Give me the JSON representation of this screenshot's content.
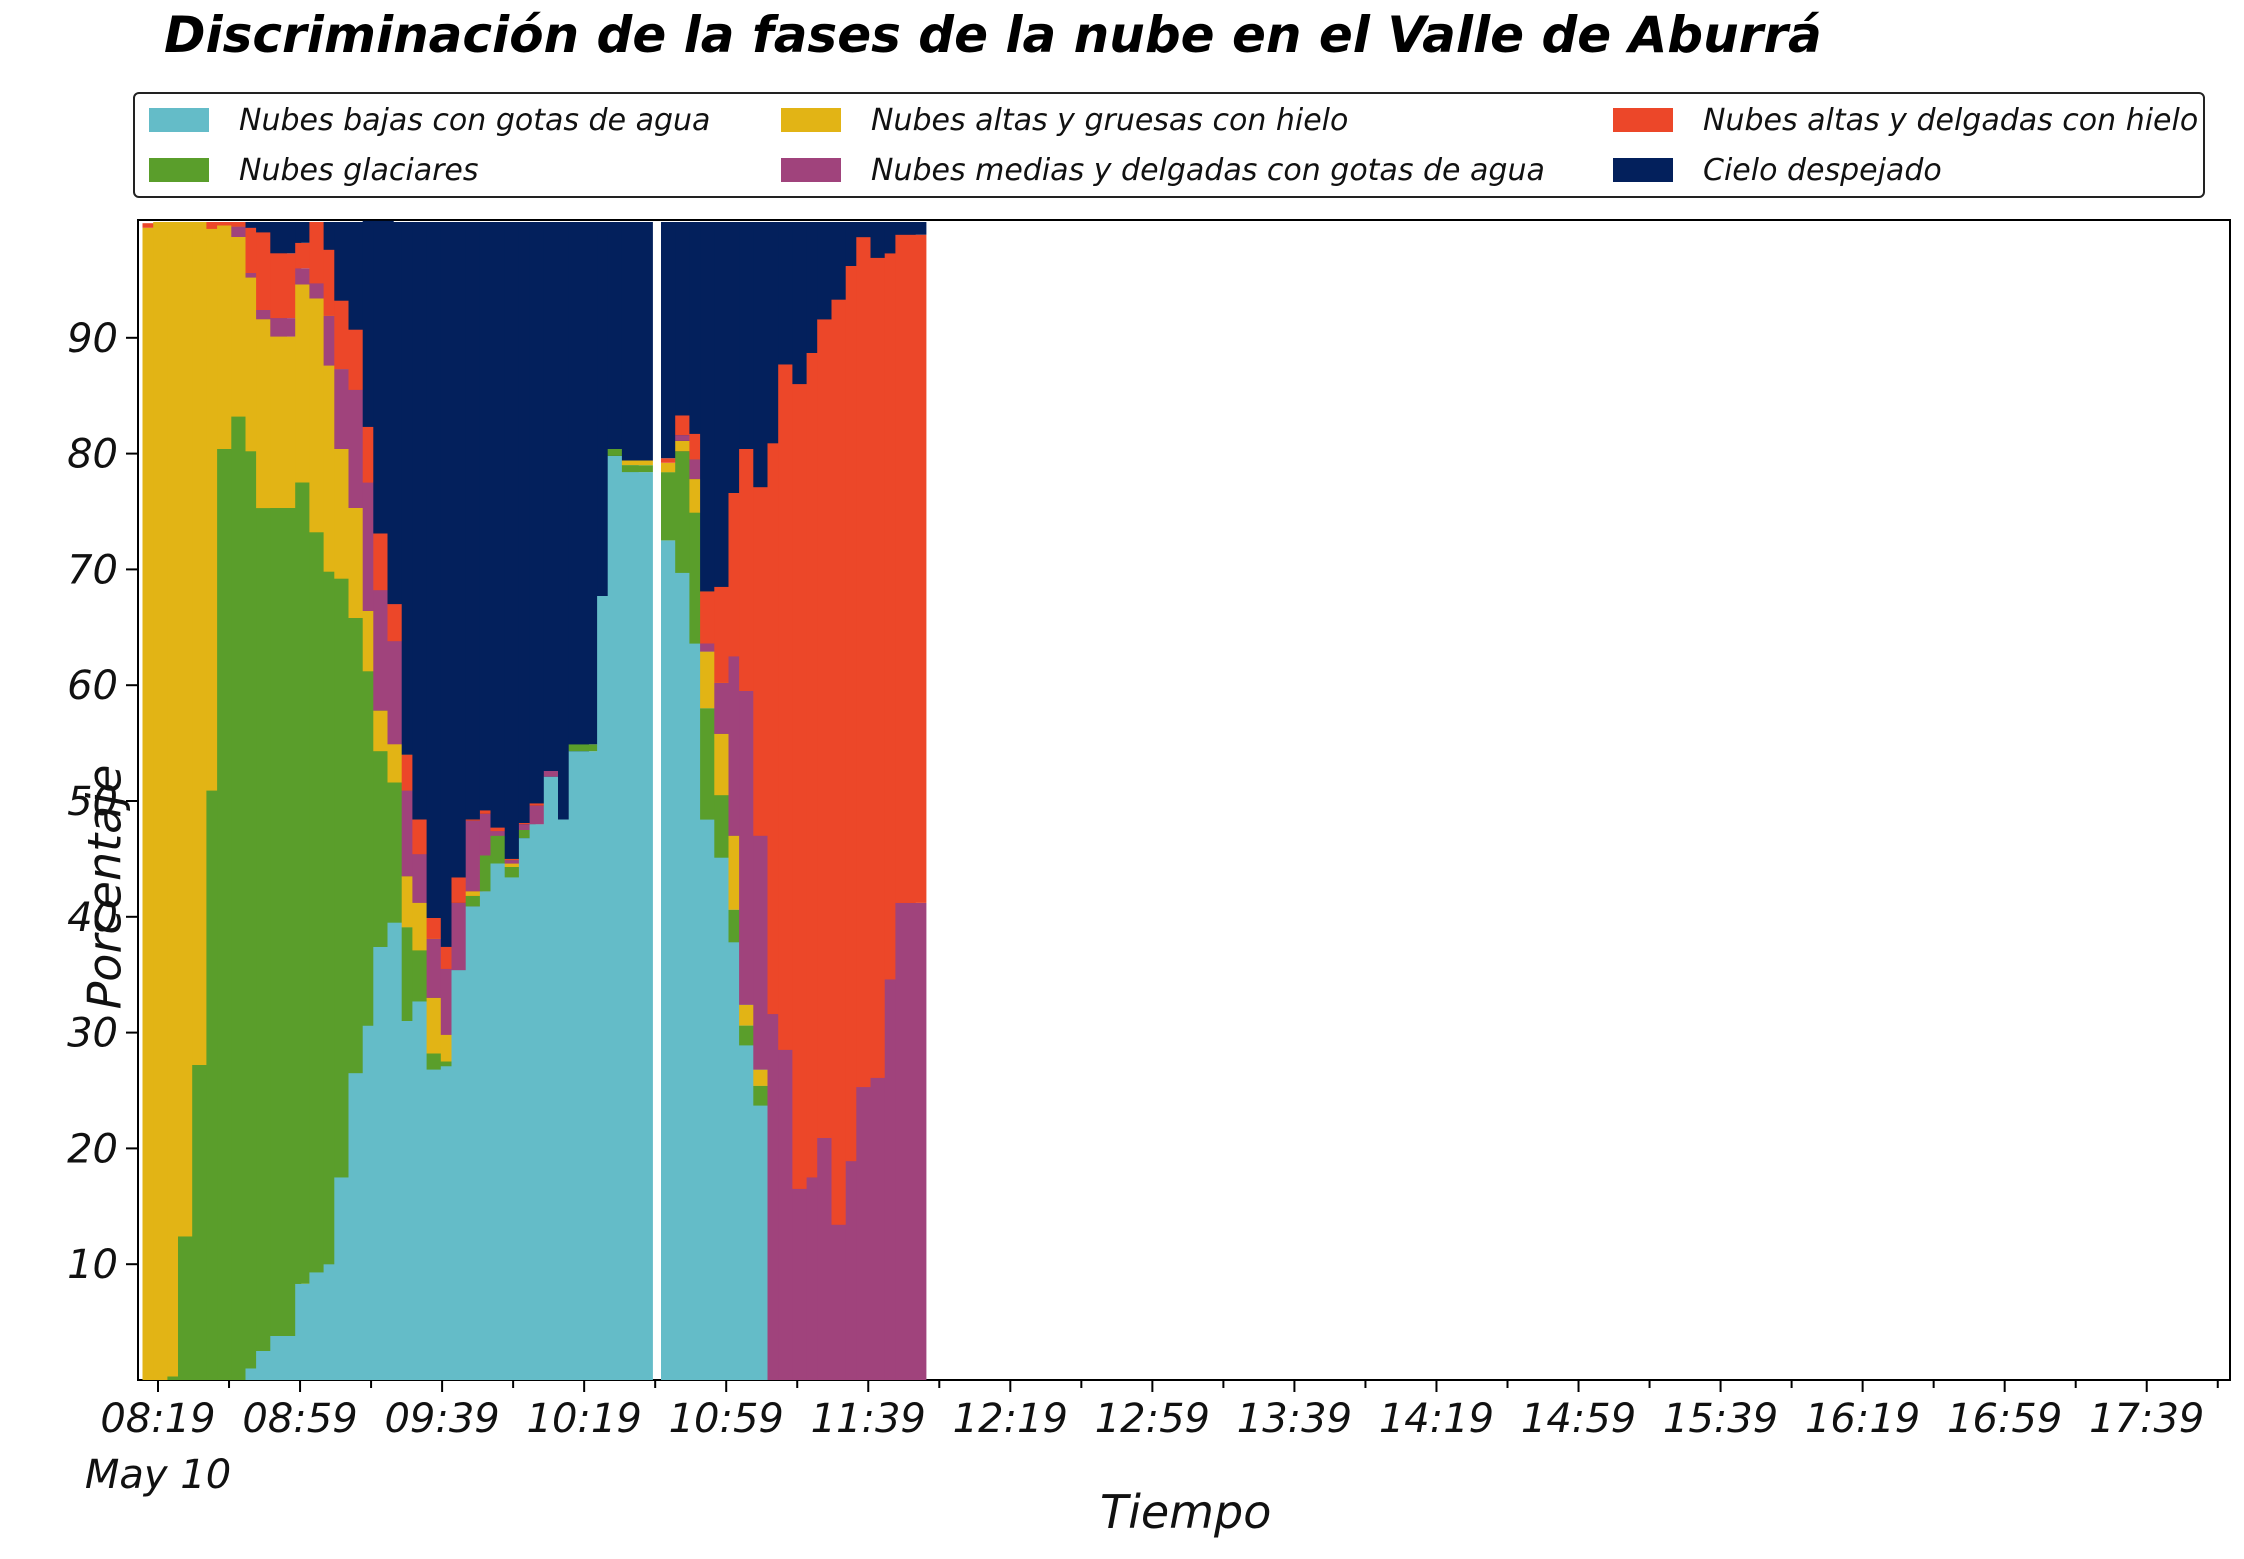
{
  "title": "Discriminación de la fases de la nube en el Valle de Aburrá",
  "legend": {
    "items": [
      {
        "label": "Nubes bajas con gotas de agua",
        "color": "#64bcc8"
      },
      {
        "label": "Nubes glaciares",
        "color": "#5a9e2b"
      },
      {
        "label": "Nubes altas y gruesas con hielo",
        "color": "#e2b415"
      },
      {
        "label": "Nubes medias y delgadas con gotas de agua",
        "color": "#a0437c"
      },
      {
        "label": "Nubes altas y delgadas con hielo",
        "color": "#ec4729"
      },
      {
        "label": "Cielo despejado",
        "color": "#03205c"
      }
    ]
  },
  "chart_data": {
    "type": "bar",
    "stacked": true,
    "title": "Discriminación de la fases de la nube en el Valle de Aburrá",
    "xlabel": "Tiempo",
    "ylabel": "Porcentaje",
    "ylim": [
      0,
      100
    ],
    "yticks": [
      10,
      20,
      30,
      40,
      50,
      60,
      70,
      80,
      90
    ],
    "xticks": [
      "08:19",
      "08:59",
      "09:39",
      "10:19",
      "10:59",
      "11:39",
      "12:19",
      "12:59",
      "13:39",
      "14:19",
      "14:59",
      "15:39",
      "16:19",
      "16:59",
      "17:39"
    ],
    "xtick_sublabel": "May 10",
    "grid": false,
    "legend_position": "top",
    "times": [
      "08:19",
      "08:24",
      "08:29",
      "08:34",
      "08:39",
      "08:44",
      "08:49",
      "08:54",
      "08:59",
      "09:04",
      "09:09",
      "09:14",
      "09:19",
      "09:24",
      "09:29",
      "09:34",
      "09:39",
      "09:44",
      "09:49",
      "09:54",
      "09:59",
      "10:04",
      "10:09",
      "10:14",
      "10:19",
      "10:24",
      "10:29",
      "10:34",
      "10:39",
      "10:44",
      "10:49",
      "10:54",
      "10:59",
      "11:04",
      "11:09",
      "11:14",
      "11:19",
      "11:24",
      "11:29",
      "11:34",
      "11:39",
      "11:44",
      "11:49",
      "11:54",
      "11:59",
      "12:04",
      "12:09",
      "12:14",
      "12:19",
      "12:24",
      "12:29",
      "12:34",
      "12:39",
      "12:44",
      "12:49",
      "12:54",
      "12:59",
      "13:04",
      "13:09",
      "13:14",
      "13:19",
      "13:24",
      "13:29",
      "13:34",
      "13:39",
      "13:44",
      "13:49",
      "13:54",
      "13:59",
      "14:04",
      "14:09",
      "14:14",
      "14:19",
      "14:24",
      "14:29",
      "14:34",
      "14:39",
      "14:44",
      "14:49",
      "14:54",
      "14:59",
      "15:04",
      "15:09",
      "15:14",
      "15:19",
      "15:24",
      "15:29",
      "15:34",
      "15:39",
      "15:44",
      "15:49",
      "15:54",
      "15:59",
      "16:04",
      "16:09",
      "16:14",
      "16:19",
      "16:24",
      "16:29",
      "16:34",
      "16:39",
      "16:44",
      "16:49",
      "16:54",
      "16:59",
      "17:04",
      "17:09",
      "17:14",
      "17:19",
      "17:24",
      "17:29",
      "17:34",
      "17:39",
      "17:44",
      "17:49",
      "17:54"
    ],
    "bars": [
      {
        "time": "08:19",
        "values": [
          0,
          0,
          99.5,
          0,
          0.4,
          0
        ]
      },
      {
        "time": "08:22",
        "values": [
          0,
          0,
          100,
          0,
          0,
          0
        ]
      },
      {
        "time": "08:26",
        "values": [
          0,
          0.3,
          99.7,
          0,
          0,
          0
        ]
      },
      {
        "time": "08:29",
        "values": [
          0,
          12.4,
          87.6,
          0,
          0,
          0
        ]
      },
      {
        "time": "08:33",
        "values": [
          0,
          27.2,
          72.8,
          0,
          0,
          0
        ]
      },
      {
        "time": "08:37",
        "values": [
          0,
          50.9,
          48.5,
          0,
          0.6,
          0
        ]
      },
      {
        "time": "08:40",
        "values": [
          0,
          80.4,
          19.3,
          0,
          0.3,
          0
        ]
      },
      {
        "time": "08:44",
        "values": [
          0,
          83.2,
          15.5,
          0.9,
          0.4,
          0
        ]
      },
      {
        "time": "08:48",
        "values": [
          1.0,
          79.2,
          15.0,
          0.4,
          3.9,
          0.5
        ]
      },
      {
        "time": "08:51",
        "values": [
          2.5,
          72.8,
          16.3,
          0.8,
          6.7,
          0.9
        ]
      },
      {
        "time": "08:55",
        "values": [
          3.8,
          71.5,
          14.8,
          1.6,
          5.6,
          2.7
        ]
      },
      {
        "time": "09:02",
        "values": [
          8.3,
          69.2,
          17.1,
          1.4,
          2.2,
          1.8
        ]
      },
      {
        "time": "09:06",
        "values": [
          9.3,
          63.9,
          20.2,
          1.3,
          5.3,
          0
        ]
      },
      {
        "time": "09:10",
        "values": [
          10.0,
          59.8,
          17.8,
          4.3,
          5.7,
          2.4
        ]
      },
      {
        "time": "09:13",
        "values": [
          17.5,
          51.7,
          11.2,
          6.9,
          5.9,
          6.8
        ]
      },
      {
        "time": "09:17",
        "values": [
          26.5,
          39.3,
          9.5,
          10.2,
          5.2,
          9.3
        ]
      },
      {
        "time": "09:21",
        "values": [
          30.6,
          30.6,
          5.2,
          11.1,
          4.8,
          17.8
        ]
      },
      {
        "time": "09:24",
        "values": [
          37.4,
          16.9,
          3.5,
          10.4,
          4.9,
          26.9
        ]
      },
      {
        "time": "09:28",
        "values": [
          39.5,
          12.1,
          3.3,
          8.9,
          3.2,
          33.0
        ]
      },
      {
        "time": "09:32",
        "values": [
          31.0,
          8.1,
          4.4,
          7.4,
          3.1,
          46.0
        ]
      },
      {
        "time": "09:35",
        "values": [
          32.7,
          4.4,
          4.1,
          4.2,
          3.0,
          51.6
        ]
      },
      {
        "time": "09:39",
        "values": [
          26.8,
          1.4,
          4.8,
          5.1,
          1.8,
          60.1
        ]
      },
      {
        "time": "09:43",
        "values": [
          27.1,
          0.4,
          2.3,
          5.7,
          1.9,
          62.6
        ]
      },
      {
        "time": "09:46",
        "values": [
          35.4,
          0,
          0,
          5.8,
          2.2,
          56.6
        ]
      },
      {
        "time": "09:50",
        "values": [
          40.9,
          0.9,
          0.4,
          6.1,
          0.1,
          51.6
        ]
      },
      {
        "time": "09:54",
        "values": [
          42.2,
          3.1,
          0,
          3.6,
          0.3,
          50.8
        ]
      },
      {
        "time": "09:57",
        "values": [
          44.6,
          2.4,
          0,
          0.4,
          0.3,
          52.3
        ]
      },
      {
        "time": "10:01",
        "values": [
          43.4,
          0.9,
          0.3,
          0.3,
          0.1,
          55.0
        ]
      },
      {
        "time": "10:05",
        "values": [
          46.8,
          0.7,
          0,
          0.5,
          0.1,
          51.9
        ]
      },
      {
        "time": "10:08",
        "values": [
          48.0,
          0,
          0,
          1.6,
          0.2,
          50.2
        ]
      },
      {
        "time": "10:12",
        "values": [
          52.1,
          0,
          0,
          0.5,
          0,
          47.4
        ]
      },
      {
        "time": "10:16",
        "values": [
          48.4,
          0,
          0,
          0,
          0,
          51.6
        ]
      },
      {
        "time": "10:19",
        "values": [
          54.3,
          0.6,
          0,
          0,
          0,
          45.1
        ]
      },
      {
        "time": "10:27",
        "values": [
          67.7,
          0,
          0,
          0,
          0,
          32.3
        ]
      },
      {
        "time": "10:30",
        "values": [
          79.8,
          0.6,
          0,
          0,
          0,
          19.6
        ]
      },
      {
        "time": "10:34",
        "values": [
          78.4,
          0.6,
          0.4,
          0,
          0,
          20.6
        ]
      },
      {
        "time": "10:45",
        "values": [
          72.5,
          5.9,
          0.8,
          0,
          0.4,
          20.4
        ]
      },
      {
        "time": "10:49",
        "values": [
          69.7,
          10.5,
          0.9,
          0.5,
          1.7,
          16.7
        ]
      },
      {
        "time": "10:53",
        "values": [
          63.6,
          11.3,
          2.9,
          1.7,
          2.2,
          18.3
        ]
      },
      {
        "time": "10:56",
        "values": [
          48.4,
          9.6,
          4.9,
          0.7,
          4.5,
          31.9
        ]
      },
      {
        "time": "11:00",
        "values": [
          45.1,
          5.4,
          5.3,
          4.4,
          8.3,
          31.5
        ]
      },
      {
        "time": "11:04",
        "values": [
          37.8,
          2.8,
          6.4,
          15.5,
          14.1,
          23.4
        ]
      },
      {
        "time": "11:07",
        "values": [
          28.9,
          1.7,
          1.8,
          27.1,
          20.9,
          19.6
        ]
      },
      {
        "time": "11:11",
        "values": [
          23.7,
          1.7,
          1.4,
          20.2,
          30.1,
          22.9
        ]
      },
      {
        "time": "11:15",
        "values": [
          0,
          0,
          0,
          31.6,
          49.3,
          19.1
        ]
      },
      {
        "time": "11:18",
        "values": [
          0,
          0,
          0,
          28.5,
          59.2,
          12.3
        ]
      },
      {
        "time": "11:22",
        "values": [
          0,
          0,
          0,
          16.5,
          69.5,
          14.0
        ]
      },
      {
        "time": "11:26",
        "values": [
          0,
          0,
          0,
          17.5,
          71.2,
          11.3
        ]
      },
      {
        "time": "11:29",
        "values": [
          0,
          0,
          0,
          20.9,
          70.7,
          8.4
        ]
      },
      {
        "time": "11:33",
        "values": [
          0,
          0,
          0,
          13.4,
          79.9,
          6.7
        ]
      },
      {
        "time": "11:37",
        "values": [
          0,
          0,
          0,
          18.9,
          77.3,
          3.8
        ]
      },
      {
        "time": "11:40",
        "values": [
          0,
          0,
          0,
          25.3,
          73.4,
          1.3
        ]
      },
      {
        "time": "11:44",
        "values": [
          0,
          0,
          0,
          26.1,
          70.8,
          3.1
        ]
      },
      {
        "time": "11:48",
        "values": [
          0,
          0,
          0,
          34.6,
          62.7,
          2.7
        ]
      },
      {
        "time": "11:51",
        "values": [
          0,
          0,
          0,
          41.2,
          57.7,
          1.1
        ]
      }
    ]
  }
}
